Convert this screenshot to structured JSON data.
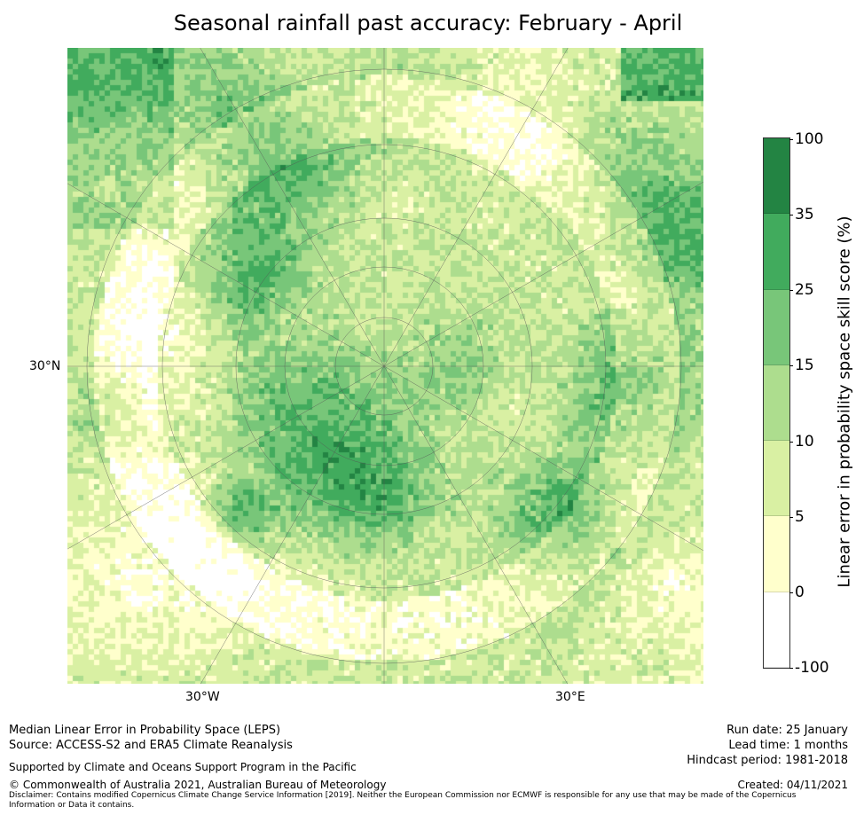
{
  "title": "Seasonal rainfall past accuracy: February - April",
  "map": {
    "lat_label": "30°N",
    "lon_labels": [
      "30°W",
      "30°E"
    ]
  },
  "colorbar": {
    "label": "Linear error in probability space skill score (%)",
    "ticks": [
      "100",
      "35",
      "25",
      "15",
      "10",
      "5",
      "0",
      "-100"
    ],
    "bins": [
      {
        "range": "35 to 100",
        "color": "#238443"
      },
      {
        "range": "25 to 35",
        "color": "#41ab5d"
      },
      {
        "range": "15 to 25",
        "color": "#78c679"
      },
      {
        "range": "10 to 15",
        "color": "#addd8e"
      },
      {
        "range": "5 to 10",
        "color": "#d9f0a3"
      },
      {
        "range": "0 to 5",
        "color": "#ffffcc"
      },
      {
        "range": "-100 to 0",
        "color": "#ffffff"
      }
    ]
  },
  "footer": {
    "method": "Median Linear Error in Probability Space (LEPS)",
    "source": "Source: ACCESS-S2 and ERA5 Climate Reanalysis",
    "support": "Supported by Climate and Oceans Support Program in the Pacific",
    "copyright": "© Commonwealth of Australia 2021, Australian Bureau of Meteorology",
    "disclaimer": "Disclaimer: Contains modified Copernicus Climate Change Service Information [2019]. Neither the European Commission nor ECMWF is responsible for any use that may be made of the Copernicus Information or Data it contains.",
    "run_date": "Run date: 25 January",
    "lead_time": "Lead time: 1 months",
    "hindcast": "Hindcast period: 1981-2018",
    "created": "Created: 04/11/2021"
  }
}
